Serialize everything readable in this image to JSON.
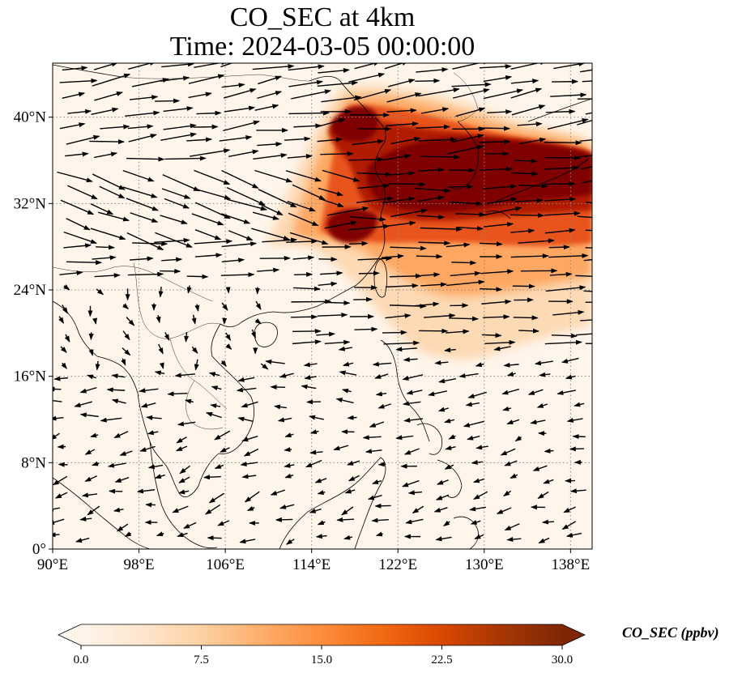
{
  "title": {
    "line1": "CO_SEC at 4km",
    "line2": "Time: 2024-03-05 00:00:00"
  },
  "map": {
    "extent": {
      "lon_min": 90,
      "lon_max": 140,
      "lat_min": 0,
      "lat_max": 45
    },
    "lon_ticks": [
      {
        "value": 90,
        "label": "90°E"
      },
      {
        "value": 98,
        "label": "98°E"
      },
      {
        "value": 106,
        "label": "106°E"
      },
      {
        "value": 114,
        "label": "114°E"
      },
      {
        "value": 122,
        "label": "122°E"
      },
      {
        "value": 130,
        "label": "130°E"
      },
      {
        "value": 138,
        "label": "138°E"
      }
    ],
    "lat_ticks": [
      {
        "value": 0,
        "label": "0°"
      },
      {
        "value": 8,
        "label": "8°N"
      },
      {
        "value": 16,
        "label": "16°N"
      },
      {
        "value": 24,
        "label": "24°N"
      },
      {
        "value": 32,
        "label": "32°N"
      },
      {
        "value": 40,
        "label": "40°N"
      }
    ],
    "gridlines": true,
    "background_color": "#fff5eb",
    "plume_colors": [
      "#fdd9b4",
      "#fda762",
      "#e8551e",
      "#b11b02",
      "#7f0000"
    ]
  },
  "colorbar": {
    "label": "CO_SEC (ppbv)",
    "min": 0.0,
    "max": 30.0,
    "ticks": [
      "0.0",
      "7.5",
      "15.0",
      "22.5",
      "30.0"
    ],
    "colormap_stops": [
      "#fff5eb",
      "#fee6ce",
      "#fdd0a2",
      "#fdae6b",
      "#fd8d3c",
      "#f16913",
      "#d94801",
      "#a63603",
      "#7f2704"
    ],
    "extend": "both"
  }
}
